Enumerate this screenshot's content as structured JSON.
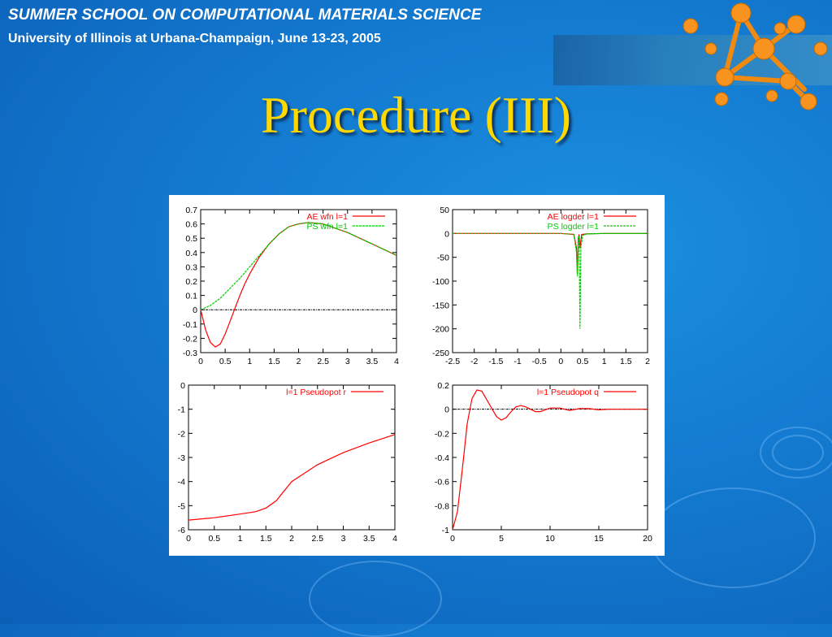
{
  "slide": {
    "header_line1": "SUMMER SCHOOL ON COMPUTATIONAL MATERIALS SCIENCE",
    "header_line2": "University of Illinois at Urbana-Champaign, June 13-23, 2005",
    "title": "Procedure (III)"
  },
  "colors": {
    "background": "#137ad0",
    "title": "#ffd800",
    "red_series": "#ff0000",
    "green_series": "#00cc00"
  },
  "logo_icon": "orange-molecule-icon",
  "chart_data": [
    {
      "type": "line",
      "xlim": [
        0,
        4
      ],
      "ylim": [
        -0.3,
        0.7
      ],
      "xticks": [
        "0",
        "0.5",
        "1",
        "1.5",
        "2",
        "2.5",
        "3",
        "3.5",
        "4"
      ],
      "yticks": [
        "-0.3",
        "-0.2",
        "-0.1",
        "0",
        "0.1",
        "0.2",
        "0.3",
        "0.4",
        "0.5",
        "0.6",
        "0.7"
      ],
      "zero_line": true,
      "series": [
        {
          "name": "AE wfn l=1",
          "color": "#ff0000",
          "x": [
            0,
            0.1,
            0.2,
            0.3,
            0.4,
            0.5,
            0.6,
            0.7,
            0.8,
            0.9,
            1,
            1.2,
            1.4,
            1.6,
            1.8,
            2,
            2.2,
            2.5,
            3,
            3.5,
            4
          ],
          "y": [
            0,
            -0.14,
            -0.23,
            -0.26,
            -0.24,
            -0.17,
            -0.08,
            0.01,
            0.1,
            0.18,
            0.25,
            0.37,
            0.46,
            0.53,
            0.58,
            0.6,
            0.61,
            0.6,
            0.54,
            0.46,
            0.38
          ]
        },
        {
          "name": "PS wfn l=1",
          "color": "#00cc00",
          "x": [
            0,
            0.2,
            0.4,
            0.6,
            0.8,
            1,
            1.2,
            1.4,
            1.6,
            1.8,
            2,
            2.2,
            2.5,
            3,
            3.5,
            4
          ],
          "y": [
            0,
            0.03,
            0.08,
            0.15,
            0.22,
            0.3,
            0.38,
            0.46,
            0.53,
            0.58,
            0.6,
            0.61,
            0.6,
            0.54,
            0.46,
            0.38
          ]
        }
      ]
    },
    {
      "type": "line",
      "xlim": [
        -2.5,
        2
      ],
      "ylim": [
        -250,
        50
      ],
      "xticks": [
        "-2.5",
        "-2",
        "-1.5",
        "-1",
        "-0.5",
        "0",
        "0.5",
        "1",
        "1.5",
        "2"
      ],
      "yticks": [
        "-250",
        "-200",
        "-150",
        "-100",
        "-50",
        "0",
        "50"
      ],
      "series": [
        {
          "name": "AE logder l=1",
          "color": "#ff0000",
          "x": [
            -2.5,
            0,
            0.3,
            0.36,
            0.38,
            0.4,
            0.42,
            0.44,
            0.48,
            0.6,
            1,
            2
          ],
          "y": [
            0,
            0,
            -2,
            -30,
            -85,
            -10,
            -2,
            -30,
            -2,
            -1,
            0,
            0
          ]
        },
        {
          "name": "PS logder l=1",
          "color": "#00cc00",
          "x": [
            -2.5,
            0,
            0.3,
            0.36,
            0.38,
            0.4,
            0.42,
            0.44,
            0.46,
            0.5,
            0.6,
            1,
            2
          ],
          "y": [
            0,
            0,
            -2,
            -40,
            -90,
            -15,
            -5,
            -200,
            -30,
            -4,
            -1,
            0,
            0
          ]
        }
      ]
    },
    {
      "type": "line",
      "xlim": [
        0,
        4
      ],
      "ylim": [
        -6,
        0
      ],
      "xticks": [
        "0",
        "0.5",
        "1",
        "1.5",
        "2",
        "2.5",
        "3",
        "3.5",
        "4"
      ],
      "yticks": [
        "-6",
        "-5",
        "-4",
        "-3",
        "-2",
        "-1",
        "0"
      ],
      "series": [
        {
          "name": "l=1 Pseudopot r",
          "color": "#ff0000",
          "x": [
            0,
            0.5,
            1,
            1.3,
            1.5,
            1.7,
            2,
            2.5,
            3,
            3.5,
            4
          ],
          "y": [
            -5.6,
            -5.5,
            -5.35,
            -5.25,
            -5.1,
            -4.8,
            -4.0,
            -3.3,
            -2.8,
            -2.4,
            -2.05
          ]
        }
      ]
    },
    {
      "type": "line",
      "xlim": [
        0,
        20
      ],
      "ylim": [
        -1,
        0.2
      ],
      "xticks": [
        "0",
        "5",
        "10",
        "15",
        "20"
      ],
      "yticks": [
        "-1",
        "-0.8",
        "-0.6",
        "-0.4",
        "-0.2",
        "0",
        "0.2"
      ],
      "zero_line": true,
      "series": [
        {
          "name": "l=1 Pseudopot q",
          "color": "#ff0000",
          "x": [
            0,
            0.5,
            1,
            1.5,
            2,
            2.5,
            3,
            3.5,
            4,
            4.5,
            5,
            5.5,
            6,
            6.5,
            7,
            7.5,
            8,
            8.5,
            9,
            10,
            11,
            12,
            13,
            14,
            15,
            16,
            17,
            18,
            19,
            20
          ],
          "y": [
            -1,
            -0.85,
            -0.5,
            -0.12,
            0.09,
            0.16,
            0.15,
            0.08,
            0.01,
            -0.06,
            -0.09,
            -0.07,
            -0.02,
            0.02,
            0.03,
            0.02,
            0,
            -0.02,
            -0.02,
            0.01,
            0.01,
            -0.01,
            0.005,
            0.005,
            -0.005,
            0,
            0,
            0,
            0,
            0
          ]
        }
      ]
    }
  ]
}
